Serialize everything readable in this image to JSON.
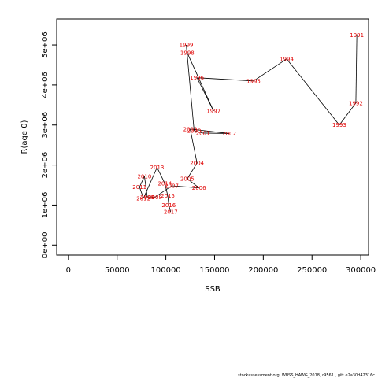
{
  "chart_data": {
    "type": "line",
    "title": "",
    "xlabel": "SSB",
    "ylabel": "R(age 0)",
    "xlim": [
      -12000,
      308000
    ],
    "ylim": [
      -250000,
      5650000
    ],
    "x_ticks": [
      0,
      50000,
      100000,
      150000,
      200000,
      250000,
      300000
    ],
    "x_tick_labels": [
      "0",
      "50000",
      "100000",
      "150000",
      "200000",
      "250000",
      "300000"
    ],
    "y_ticks": [
      0,
      1000000,
      2000000,
      3000000,
      4000000,
      5000000
    ],
    "y_tick_labels": [
      "0e+00",
      "1e+06",
      "2e+06",
      "3e+06",
      "4e+06",
      "5e+06"
    ],
    "grid": false,
    "point_color": "#e00000",
    "line_color": "#000000",
    "points": [
      {
        "year": "1991",
        "x": 296000,
        "y": 5250000
      },
      {
        "year": "1992",
        "x": 295000,
        "y": 3550000
      },
      {
        "year": "1993",
        "x": 278000,
        "y": 3000000
      },
      {
        "year": "1994",
        "x": 224000,
        "y": 4650000
      },
      {
        "year": "1995",
        "x": 190000,
        "y": 4100000
      },
      {
        "year": "1996",
        "x": 132000,
        "y": 4180000
      },
      {
        "year": "1997",
        "x": 149000,
        "y": 3350000
      },
      {
        "year": "1998",
        "x": 122000,
        "y": 4800000
      },
      {
        "year": "1999",
        "x": 121000,
        "y": 5000000
      },
      {
        "year": "2000",
        "x": 129000,
        "y": 2860000
      },
      {
        "year": "2001",
        "x": 138000,
        "y": 2800000
      },
      {
        "year": "2002",
        "x": 165000,
        "y": 2790000
      },
      {
        "year": "2003",
        "x": 125000,
        "y": 2900000
      },
      {
        "year": "2004",
        "x": 132000,
        "y": 2050000
      },
      {
        "year": "2005",
        "x": 122000,
        "y": 1660000
      },
      {
        "year": "2006",
        "x": 134000,
        "y": 1430000
      },
      {
        "year": "2007",
        "x": 106000,
        "y": 1480000
      },
      {
        "year": "2008",
        "x": 89000,
        "y": 1200000
      },
      {
        "year": "2009",
        "x": 81000,
        "y": 1200000
      },
      {
        "year": "2010",
        "x": 78000,
        "y": 1720000
      },
      {
        "year": "2011",
        "x": 73000,
        "y": 1450000
      },
      {
        "year": "2012",
        "x": 77000,
        "y": 1170000
      },
      {
        "year": "2013",
        "x": 91000,
        "y": 1940000
      },
      {
        "year": "2014",
        "x": 99000,
        "y": 1540000
      },
      {
        "year": "2015",
        "x": 102000,
        "y": 1230000
      },
      {
        "year": "2016",
        "x": 103000,
        "y": 1000000
      },
      {
        "year": "2017",
        "x": 105000,
        "y": 830000
      }
    ]
  },
  "footer": "stockassessment.org, WBSS_HAWG_2018, r9561 , git: e2a30d42316c"
}
